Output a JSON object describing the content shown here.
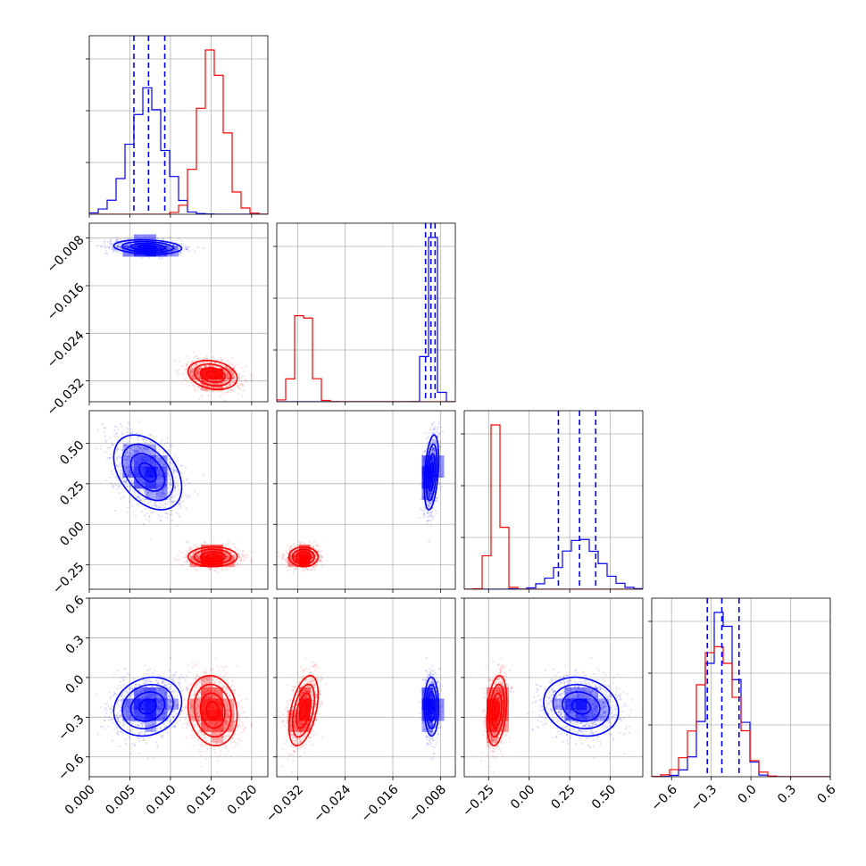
{
  "chart_data": {
    "type": "corner",
    "grid": true,
    "dims": [
      {
        "range": [
          0.0,
          0.022
        ],
        "ticks": [
          0.0,
          0.005,
          0.01,
          0.015,
          0.02
        ],
        "tick_labels": [
          "0.000",
          "0.005",
          "0.010",
          "0.015",
          "0.020"
        ]
      },
      {
        "range": [
          -0.0355,
          -0.0055
        ],
        "ticks": [
          -0.032,
          -0.024,
          -0.016,
          -0.008
        ],
        "tick_labels": [
          "−0.032",
          "−0.024",
          "−0.016",
          "−0.008"
        ]
      },
      {
        "range": [
          -0.4,
          0.7
        ],
        "ticks": [
          -0.25,
          0.0,
          0.25,
          0.5
        ],
        "tick_labels": [
          "−0.25",
          "0.00",
          "0.25",
          "0.50"
        ]
      },
      {
        "range": [
          -0.75,
          0.6
        ],
        "ticks": [
          -0.6,
          -0.3,
          0.0,
          0.3,
          0.6
        ],
        "tick_labels": [
          "−0.6",
          "−0.3",
          "0.0",
          "0.3",
          "0.6"
        ]
      }
    ],
    "series": [
      {
        "color": "#0000ff",
        "mean": [
          0.0072,
          -0.0095,
          0.32,
          -0.22
        ],
        "std": [
          0.0021,
          0.0006,
          0.11,
          0.11
        ],
        "quantiles": [
          [
            0.0055,
            0.0073,
            0.0093
          ],
          [
            -0.0105,
            -0.0096,
            -0.0089
          ],
          [
            0.18,
            0.31,
            0.41
          ],
          [
            -0.33,
            -0.22,
            -0.09
          ]
        ]
      },
      {
        "color": "#ff0000",
        "mean": [
          0.0152,
          -0.031,
          -0.2,
          -0.25
        ],
        "std": [
          0.0015,
          0.0012,
          0.03,
          0.13
        ],
        "quantiles": null
      }
    ],
    "quantile_style": "dashed",
    "contour_levels": 4
  }
}
